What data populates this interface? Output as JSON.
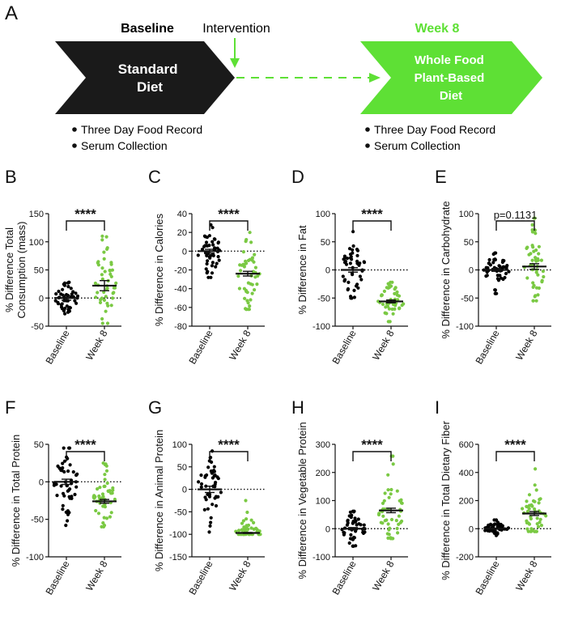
{
  "colors": {
    "baseline": "#000000",
    "week8": "#7ac943",
    "arrow_dark": "#1a1a1a",
    "arrow_green": "#5ee035"
  },
  "panel_a": {
    "letter": "A",
    "baseline_title": "Baseline",
    "intervention_label": "Intervention",
    "week8_title": "Week 8",
    "standard_diet_lines": [
      "Standard",
      "Diet"
    ],
    "wfpb_lines": [
      "Whole Food",
      "Plant-Based",
      "Diet"
    ],
    "left_bullets": [
      "Three Day Food Record",
      "Serum Collection"
    ],
    "right_bullets": [
      "Three Day Food Record",
      "Serum Collection"
    ]
  },
  "chart_data": [
    {
      "letter": "B",
      "type": "scatter",
      "ylabel": [
        "% Difference Total",
        "Consumption (mass)"
      ],
      "categories": [
        "Baseline",
        "Week 8"
      ],
      "ylim": [
        -50,
        150
      ],
      "yticks": [
        -50,
        0,
        50,
        100,
        150
      ],
      "significance": "****",
      "series": [
        {
          "name": "Baseline",
          "mean": 0,
          "sem": 4,
          "min": -28,
          "max": 28
        },
        {
          "name": "Week 8",
          "mean": 22,
          "sem": 9,
          "min": -45,
          "max": 110
        }
      ]
    },
    {
      "letter": "C",
      "type": "scatter",
      "ylabel": [
        "% Difference in Calories"
      ],
      "categories": [
        "Baseline",
        "Week 8"
      ],
      "ylim": [
        -80,
        40
      ],
      "yticks": [
        -80,
        -60,
        -40,
        -20,
        0,
        20,
        40
      ],
      "significance": "****",
      "series": [
        {
          "name": "Baseline",
          "mean": 0,
          "sem": 2,
          "min": -28,
          "max": 28
        },
        {
          "name": "Week 8",
          "mean": -24,
          "sem": 2.5,
          "min": -62,
          "max": 20
        }
      ]
    },
    {
      "letter": "D",
      "type": "scatter",
      "ylabel": [
        "% Difference in Fat"
      ],
      "categories": [
        "Baseline",
        "Week 8"
      ],
      "ylim": [
        -100,
        100
      ],
      "yticks": [
        -100,
        -50,
        0,
        50,
        100
      ],
      "significance": "****",
      "series": [
        {
          "name": "Baseline",
          "mean": 0,
          "sem": 4,
          "min": -50,
          "max": 68
        },
        {
          "name": "Week 8",
          "mean": -56,
          "sem": 2.5,
          "min": -92,
          "max": -22
        }
      ]
    },
    {
      "letter": "E",
      "type": "scatter",
      "ylabel": [
        "% Difference in Carbohydrate"
      ],
      "categories": [
        "Baseline",
        "Week 8"
      ],
      "ylim": [
        -100,
        100
      ],
      "yticks": [
        -100,
        -50,
        0,
        50,
        100
      ],
      "significance": "p=0.1131",
      "series": [
        {
          "name": "Baseline",
          "mean": 0,
          "sem": 2.5,
          "min": -42,
          "max": 30
        },
        {
          "name": "Week 8",
          "mean": 6,
          "sem": 5,
          "min": -55,
          "max": 92
        }
      ]
    },
    {
      "letter": "F",
      "type": "scatter",
      "ylabel": [
        "% Difference in Total Protein"
      ],
      "categories": [
        "Baseline",
        "Week 8"
      ],
      "ylim": [
        -100,
        50
      ],
      "yticks": [
        -100,
        -50,
        0,
        50
      ],
      "significance": "****",
      "series": [
        {
          "name": "Baseline",
          "mean": 0,
          "sem": 3.5,
          "min": -58,
          "max": 45
        },
        {
          "name": "Week 8",
          "mean": -26,
          "sem": 2.5,
          "min": -60,
          "max": 25
        }
      ]
    },
    {
      "letter": "G",
      "type": "scatter",
      "ylabel": [
        "% Difference in Animal Protein"
      ],
      "categories": [
        "Baseline",
        "Week 8"
      ],
      "ylim": [
        -150,
        100
      ],
      "yticks": [
        -150,
        -100,
        -50,
        0,
        50,
        100
      ],
      "significance": "****",
      "series": [
        {
          "name": "Baseline",
          "mean": 0,
          "sem": 7,
          "min": -95,
          "max": 85
        },
        {
          "name": "Week 8",
          "mean": -97,
          "sem": 1,
          "min": -100,
          "max": -25
        }
      ]
    },
    {
      "letter": "H",
      "type": "scatter",
      "ylabel": [
        "% Difference in Vegetable Protein"
      ],
      "categories": [
        "Baseline",
        "Week 8"
      ],
      "ylim": [
        -100,
        300
      ],
      "yticks": [
        -100,
        0,
        100,
        200,
        300
      ],
      "significance": "****",
      "series": [
        {
          "name": "Baseline",
          "mean": 0,
          "sem": 4,
          "min": -62,
          "max": 62
        },
        {
          "name": "Week 8",
          "mean": 65,
          "sem": 8,
          "min": -35,
          "max": 258
        }
      ]
    },
    {
      "letter": "I",
      "type": "scatter",
      "ylabel": [
        "% Difference in Total Dietary Fiber"
      ],
      "categories": [
        "Baseline",
        "Week 8"
      ],
      "ylim": [
        -200,
        600
      ],
      "yticks": [
        -200,
        0,
        200,
        400,
        600
      ],
      "significance": "****",
      "series": [
        {
          "name": "Baseline",
          "mean": 0,
          "sem": 4,
          "min": -48,
          "max": 62
        },
        {
          "name": "Week 8",
          "mean": 108,
          "sem": 14,
          "min": -20,
          "max": 425
        }
      ]
    }
  ]
}
